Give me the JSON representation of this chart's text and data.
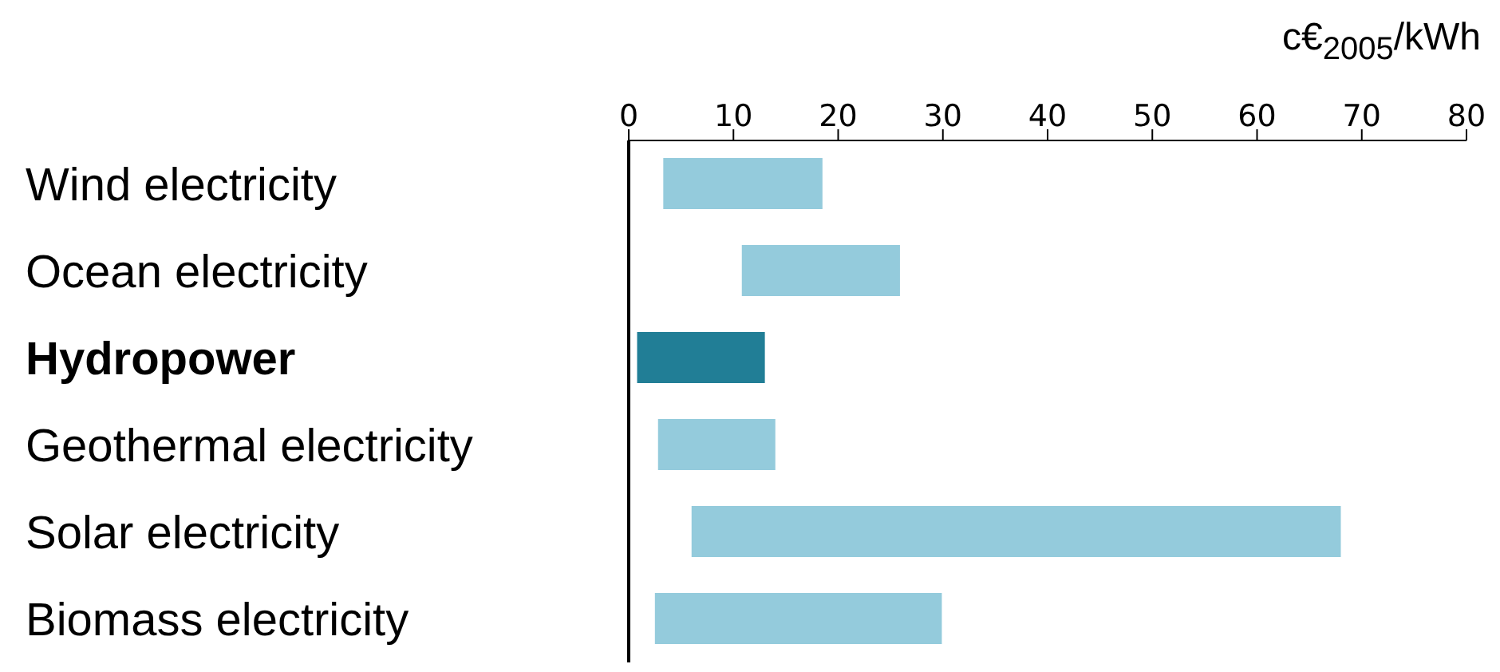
{
  "chart_data": {
    "type": "bar",
    "orientation": "horizontal",
    "xlabel": "c€$_{2005}$/kWh",
    "categories": [
      "Wind electricity",
      "Ocean electricity",
      "Hydropower",
      "Geothermal electricity",
      "Solar electricity",
      "Biomass electricity"
    ],
    "base": [
      3.3,
      10.8,
      0.8,
      2.8,
      6.0,
      2.5
    ],
    "values": [
      15.2,
      15.1,
      12.2,
      11.2,
      62.0,
      27.4
    ],
    "colors": [
      "#94cbdc",
      "#94cbdc",
      "#217e96",
      "#94cbdc",
      "#94cbdc",
      "#94cbdc"
    ],
    "xlim": [
      0,
      80
    ],
    "xticks": [
      0,
      10,
      20,
      30,
      40,
      50,
      60,
      70,
      80
    ],
    "grid": false,
    "legend": false
  }
}
